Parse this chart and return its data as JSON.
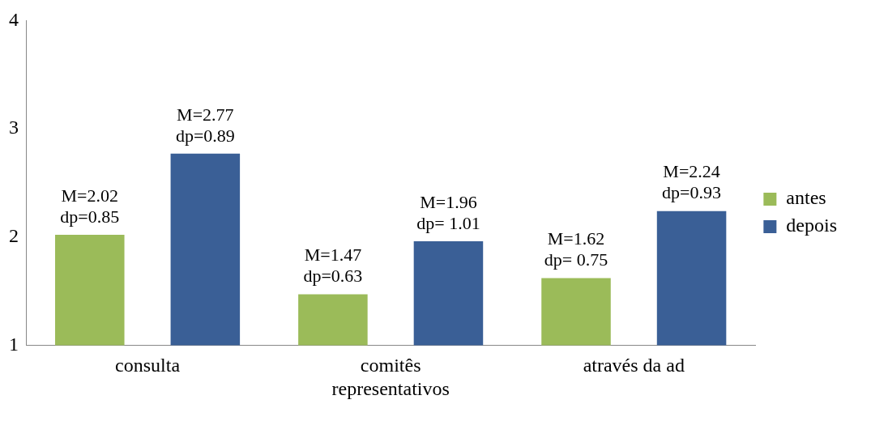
{
  "chart_data": {
    "type": "bar",
    "categories": [
      "consulta",
      "comitês representativos",
      "através da ad"
    ],
    "series": [
      {
        "name": "antes",
        "color": "#9bbb59",
        "values": [
          2.02,
          1.47,
          1.62
        ],
        "value_labels": [
          "M=2.02\ndp=0.85",
          "M=1.47\ndp=0.63",
          "M=1.62\ndp= 0.75"
        ]
      },
      {
        "name": "depois",
        "color": "#3a5f96",
        "values": [
          2.77,
          1.96,
          2.24
        ],
        "value_labels": [
          "M=2.77\ndp=0.89",
          "M=1.96\ndp= 1.01",
          "M=2.24\ndp=0.93"
        ]
      }
    ],
    "ylim": [
      1,
      4
    ],
    "yticks": [
      1,
      2,
      3,
      4
    ],
    "grid": false,
    "legend": "right"
  }
}
